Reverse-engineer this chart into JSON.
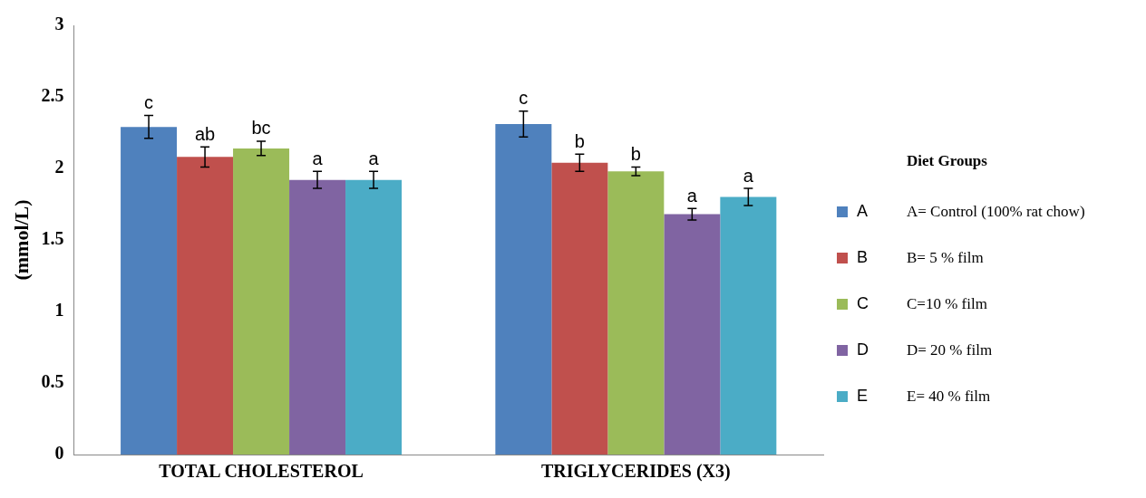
{
  "chart_data": {
    "type": "bar",
    "ylabel": "(mmol/L)",
    "legend_title": "Diet Groups",
    "categories": [
      "TOTAL CHOLESTEROL",
      "TRIGLYCERIDES (X3)"
    ],
    "series": [
      {
        "name": "A",
        "color": "#4f81bd",
        "values": [
          2.29,
          2.31
        ],
        "errors": [
          0.08,
          0.09
        ],
        "value_labels": [
          "c",
          "c"
        ]
      },
      {
        "name": "B",
        "color": "#c0504d",
        "values": [
          2.08,
          2.04
        ],
        "errors": [
          0.07,
          0.06
        ],
        "value_labels": [
          "ab",
          "b"
        ]
      },
      {
        "name": "C",
        "color": "#9bbb59",
        "values": [
          2.14,
          1.98
        ],
        "errors": [
          0.05,
          0.03
        ],
        "value_labels": [
          "bc",
          "b"
        ]
      },
      {
        "name": "D",
        "color": "#8064a2",
        "values": [
          1.92,
          1.68
        ],
        "errors": [
          0.06,
          0.04
        ],
        "value_labels": [
          "a",
          "a"
        ]
      },
      {
        "name": "E",
        "color": "#4bacc6",
        "values": [
          1.92,
          1.8
        ],
        "errors": [
          0.06,
          0.06
        ],
        "value_labels": [
          "a",
          "a"
        ]
      }
    ],
    "annotations": [
      "A= Control (100% rat chow)",
      "B= 5 % film",
      "C=10 % film",
      "D= 20 % film",
      "E= 40 % film"
    ],
    "ylim": [
      0,
      3
    ],
    "yticks": [
      0,
      0.5,
      1,
      1.5,
      2,
      2.5,
      3
    ],
    "grid": false,
    "legend": "right"
  }
}
